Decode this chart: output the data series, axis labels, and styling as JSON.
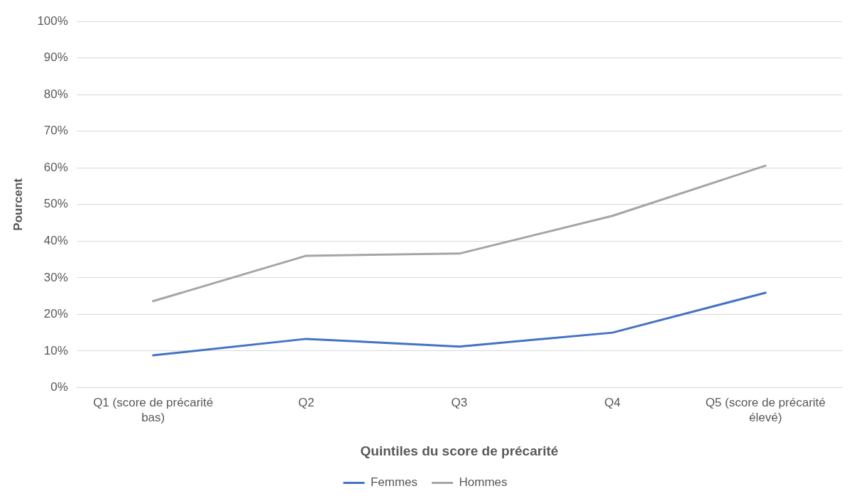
{
  "chart_data": {
    "type": "line",
    "xlabel": "Quintiles du score de précarité",
    "ylabel": "Pourcent",
    "categories": [
      "Q1 (score de précarité bas)",
      "Q2",
      "Q3",
      "Q4",
      "Q5 (score de précarité élevé)"
    ],
    "series": [
      {
        "name": "Femmes",
        "color": "#4472c4",
        "values": [
          8.8,
          13.3,
          11.2,
          15.0,
          25.9
        ]
      },
      {
        "name": "Hommes",
        "color": "#a5a5a5",
        "values": [
          23.6,
          36.0,
          36.6,
          46.9,
          60.6
        ]
      }
    ],
    "ylim": [
      0,
      100
    ],
    "yticks": [
      {
        "value": 0,
        "label": "0%"
      },
      {
        "value": 10,
        "label": "10%"
      },
      {
        "value": 20,
        "label": "20%"
      },
      {
        "value": 30,
        "label": "30%"
      },
      {
        "value": 40,
        "label": "40%"
      },
      {
        "value": 50,
        "label": "50%"
      },
      {
        "value": 60,
        "label": "60%"
      },
      {
        "value": 70,
        "label": "70%"
      },
      {
        "value": 80,
        "label": "80%"
      },
      {
        "value": 90,
        "label": "90%"
      },
      {
        "value": 100,
        "label": "100%"
      }
    ],
    "grid": "y",
    "legend": "bottom",
    "marker": "none",
    "line_style": "solid"
  }
}
